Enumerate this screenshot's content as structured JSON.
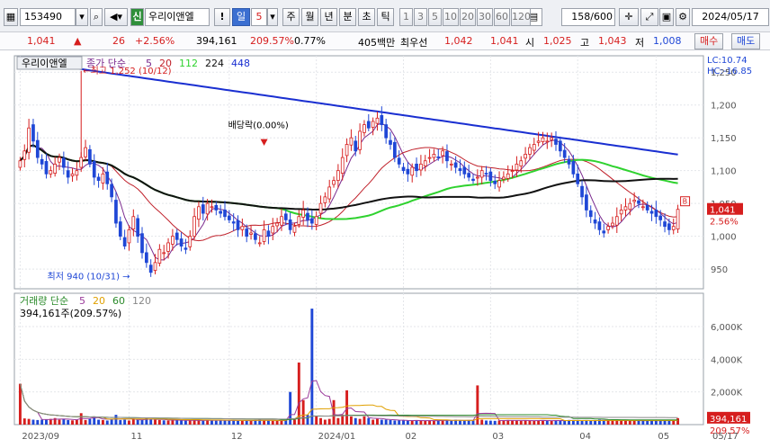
{
  "toolbar": {
    "code": "153490",
    "stock_name": "우리이앤엘",
    "stock_tag": "신",
    "period_value": "5",
    "period_buttons": [
      "주",
      "월",
      "년",
      "분",
      "초",
      "틱"
    ],
    "minute_buttons": [
      "1",
      "3",
      "5",
      "10",
      "20",
      "30",
      "60",
      "120"
    ],
    "current_period": "일",
    "count": "158",
    "count_total": "/600",
    "date": "2024/05/17",
    "exclaim_label": "!"
  },
  "quote": {
    "price": "1,041",
    "change_arrow": "▲",
    "change": "26",
    "change_pct": "+2.56%",
    "volume": "394,161",
    "volume_ratio": "209.57%",
    "turnover": "0.77%",
    "amount": "405백만",
    "best_ask_label": "최우선",
    "best_ask": "1,042",
    "best_bid": "1,041",
    "open_label": "시",
    "open": "1,025",
    "high_label": "고",
    "high": "1,043",
    "low_label": "저",
    "low": "1,008",
    "buy_label": "매수",
    "sell_label": "매도"
  },
  "price_panel": {
    "stock_label": "우리이앤엘",
    "ma_label_prefix": "종가 단순",
    "ma_periods": [
      "5",
      "20",
      "112",
      "224",
      "448"
    ],
    "lc": "LC:10.74",
    "hc": "HC:-16.85",
    "y_ticks": [
      "1,250",
      "1,200",
      "1,150",
      "1,100",
      "1,050",
      "1,000",
      "950"
    ],
    "current_tag": "1,041",
    "current_pct": "2.56%",
    "high_annotation": "최고 1,252 (10/12)",
    "low_annotation": "최저 940 (10/31)",
    "dividend_annotation": "배당락(0.00%)",
    "b_marker": "B"
  },
  "volume_panel": {
    "label_prefix": "거래량 단순",
    "ma_periods": [
      "5",
      "20",
      "60",
      "120"
    ],
    "current_volume": "394,161주(209.57%)",
    "y_ticks": [
      "6,000K",
      "4,000K",
      "2,000K"
    ],
    "current_tag": "394,161",
    "current_pct": "209.57%"
  },
  "x_axis": {
    "labels": [
      "2023/09",
      "11",
      "12",
      "2024/01",
      "02",
      "03",
      "04",
      "05",
      "05/17"
    ]
  },
  "colors": {
    "up": "#d61e1e",
    "down": "#1f47d6",
    "ma5": "#7a2a8e",
    "ma20": "#c0202a",
    "ma112": "#2fd22f",
    "ma224": "#111111",
    "ma448": "#1a2fd1",
    "vma5": "#9a3a9a",
    "vma20": "#e0a000",
    "vma60": "#2a8a2a",
    "vma120": "#888888"
  },
  "chart_data": {
    "type": "candlestick",
    "title": "우리이앤엘",
    "x_range": [
      "2023/09",
      "2024/05/17"
    ],
    "ylim": [
      920,
      1275
    ],
    "high": {
      "value": 1252,
      "date": "10/12"
    },
    "low": {
      "value": 940,
      "date": "10/31"
    },
    "last": {
      "close": 1041,
      "open": 1025,
      "high": 1043,
      "low": 1008,
      "change": 26,
      "change_pct": 2.56
    },
    "close": [
      1115,
      1130,
      1165,
      1145,
      1120,
      1110,
      1095,
      1100,
      1110,
      1120,
      1105,
      1090,
      1095,
      1100,
      1120,
      1135,
      1110,
      1090,
      1085,
      1095,
      1080,
      1060,
      1020,
      1000,
      985,
      1010,
      1030,
      1000,
      975,
      960,
      945,
      960,
      980,
      975,
      990,
      1000,
      995,
      985,
      980,
      1000,
      1030,
      1045,
      1035,
      1050,
      1045,
      1040,
      1035,
      1030,
      1025,
      1020,
      1010,
      1015,
      1000,
      1005,
      995,
      990,
      1010,
      1000,
      1015,
      1020,
      1030,
      1025,
      1010,
      1015,
      1030,
      1040,
      1025,
      1020,
      1030,
      1050,
      1060,
      1075,
      1085,
      1100,
      1120,
      1140,
      1150,
      1130,
      1160,
      1170,
      1165,
      1175,
      1180,
      1170,
      1150,
      1140,
      1120,
      1110,
      1100,
      1095,
      1105,
      1100,
      1110,
      1115,
      1120,
      1125,
      1120,
      1130,
      1115,
      1110,
      1105,
      1100,
      1095,
      1090,
      1085,
      1090,
      1100,
      1095,
      1085,
      1080,
      1085,
      1090,
      1095,
      1100,
      1110,
      1115,
      1125,
      1135,
      1140,
      1145,
      1150,
      1145,
      1150,
      1140,
      1130,
      1120,
      1110,
      1095,
      1080,
      1060,
      1040,
      1030,
      1020,
      1010,
      1005,
      1015,
      1020,
      1030,
      1040,
      1045,
      1050,
      1055,
      1050,
      1045,
      1040,
      1035,
      1030,
      1025,
      1015,
      1010,
      1015,
      1041
    ],
    "volume_k": [
      2500,
      380,
      350,
      300,
      280,
      300,
      320,
      350,
      400,
      300,
      350,
      280,
      260,
      300,
      700,
      280,
      350,
      500,
      300,
      280,
      250,
      300,
      600,
      280,
      300,
      250,
      350,
      300,
      280,
      400,
      350,
      300,
      280,
      260,
      250,
      280,
      300,
      250,
      240,
      260,
      250,
      280,
      240,
      300,
      250,
      240,
      260,
      280,
      250,
      240,
      230,
      260,
      250,
      240,
      280,
      300,
      250,
      240,
      230,
      250,
      260,
      280,
      2000,
      300,
      3800,
      1500,
      600,
      7100,
      500,
      400,
      300,
      350,
      1500,
      400,
      600,
      2100,
      500,
      400,
      350,
      500,
      400,
      300,
      350,
      300,
      300,
      280,
      250,
      260,
      250,
      240,
      250,
      260,
      240,
      230,
      250,
      240,
      260,
      280,
      250,
      240,
      300,
      250,
      240,
      260,
      250,
      2400,
      300,
      250,
      240,
      230,
      250,
      260,
      280,
      250,
      240,
      230,
      260,
      250,
      240,
      250,
      260,
      240,
      230,
      250,
      260,
      240,
      280,
      250,
      240,
      230,
      260,
      250,
      240,
      300,
      250,
      260,
      240,
      250,
      260,
      230,
      240,
      250,
      260,
      240,
      230,
      250,
      240,
      250,
      260,
      240,
      250,
      394
    ]
  }
}
